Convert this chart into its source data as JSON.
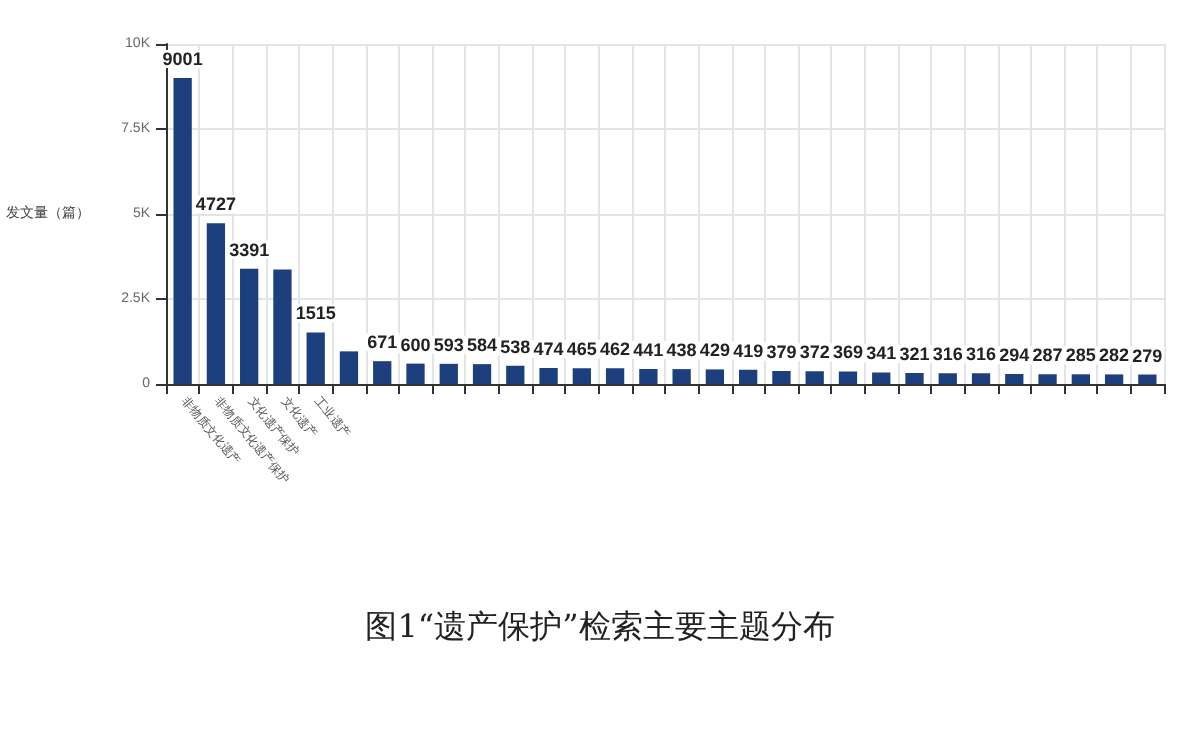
{
  "chart_data": {
    "type": "bar",
    "title": "图1“遗产保护”检索主要主题分布",
    "ylabel": "发文量（篇）",
    "categories": [
      "非物质文化遗产",
      "非物质文化遗产保护",
      "文化遗产保护",
      "文化遗产",
      "工业遗产",
      null,
      null,
      null,
      null,
      null,
      null,
      null,
      null,
      null,
      null,
      null,
      null,
      null,
      null,
      null,
      null,
      null,
      null,
      null,
      null,
      null,
      null,
      null,
      null,
      null
    ],
    "values": [
      9001,
      4727,
      3391,
      3370,
      1515,
      960,
      671,
      600,
      593,
      584,
      538,
      474,
      465,
      462,
      441,
      438,
      429,
      419,
      379,
      372,
      369,
      341,
      321,
      316,
      316,
      294,
      287,
      285,
      282,
      279
    ],
    "value_labels": [
      "9001",
      "4727",
      "3391",
      null,
      "1515",
      null,
      "671",
      "600",
      "593",
      "584",
      "538",
      "474",
      "465",
      "462",
      "441",
      "438",
      "429",
      "419",
      "379",
      "372",
      "369",
      "341",
      "321",
      "316",
      "316",
      "294",
      "287",
      "285",
      "282",
      "279"
    ],
    "color": "#1e3f7e",
    "ylim": [
      0,
      10000
    ],
    "yticks": [
      {
        "value": 0,
        "label": "0"
      },
      {
        "value": 2500,
        "label": "2.5K"
      },
      {
        "value": 5000,
        "label": "5K"
      },
      {
        "value": 7500,
        "label": "7.5K"
      },
      {
        "value": 10000,
        "label": "10K"
      }
    ],
    "grid": true
  }
}
